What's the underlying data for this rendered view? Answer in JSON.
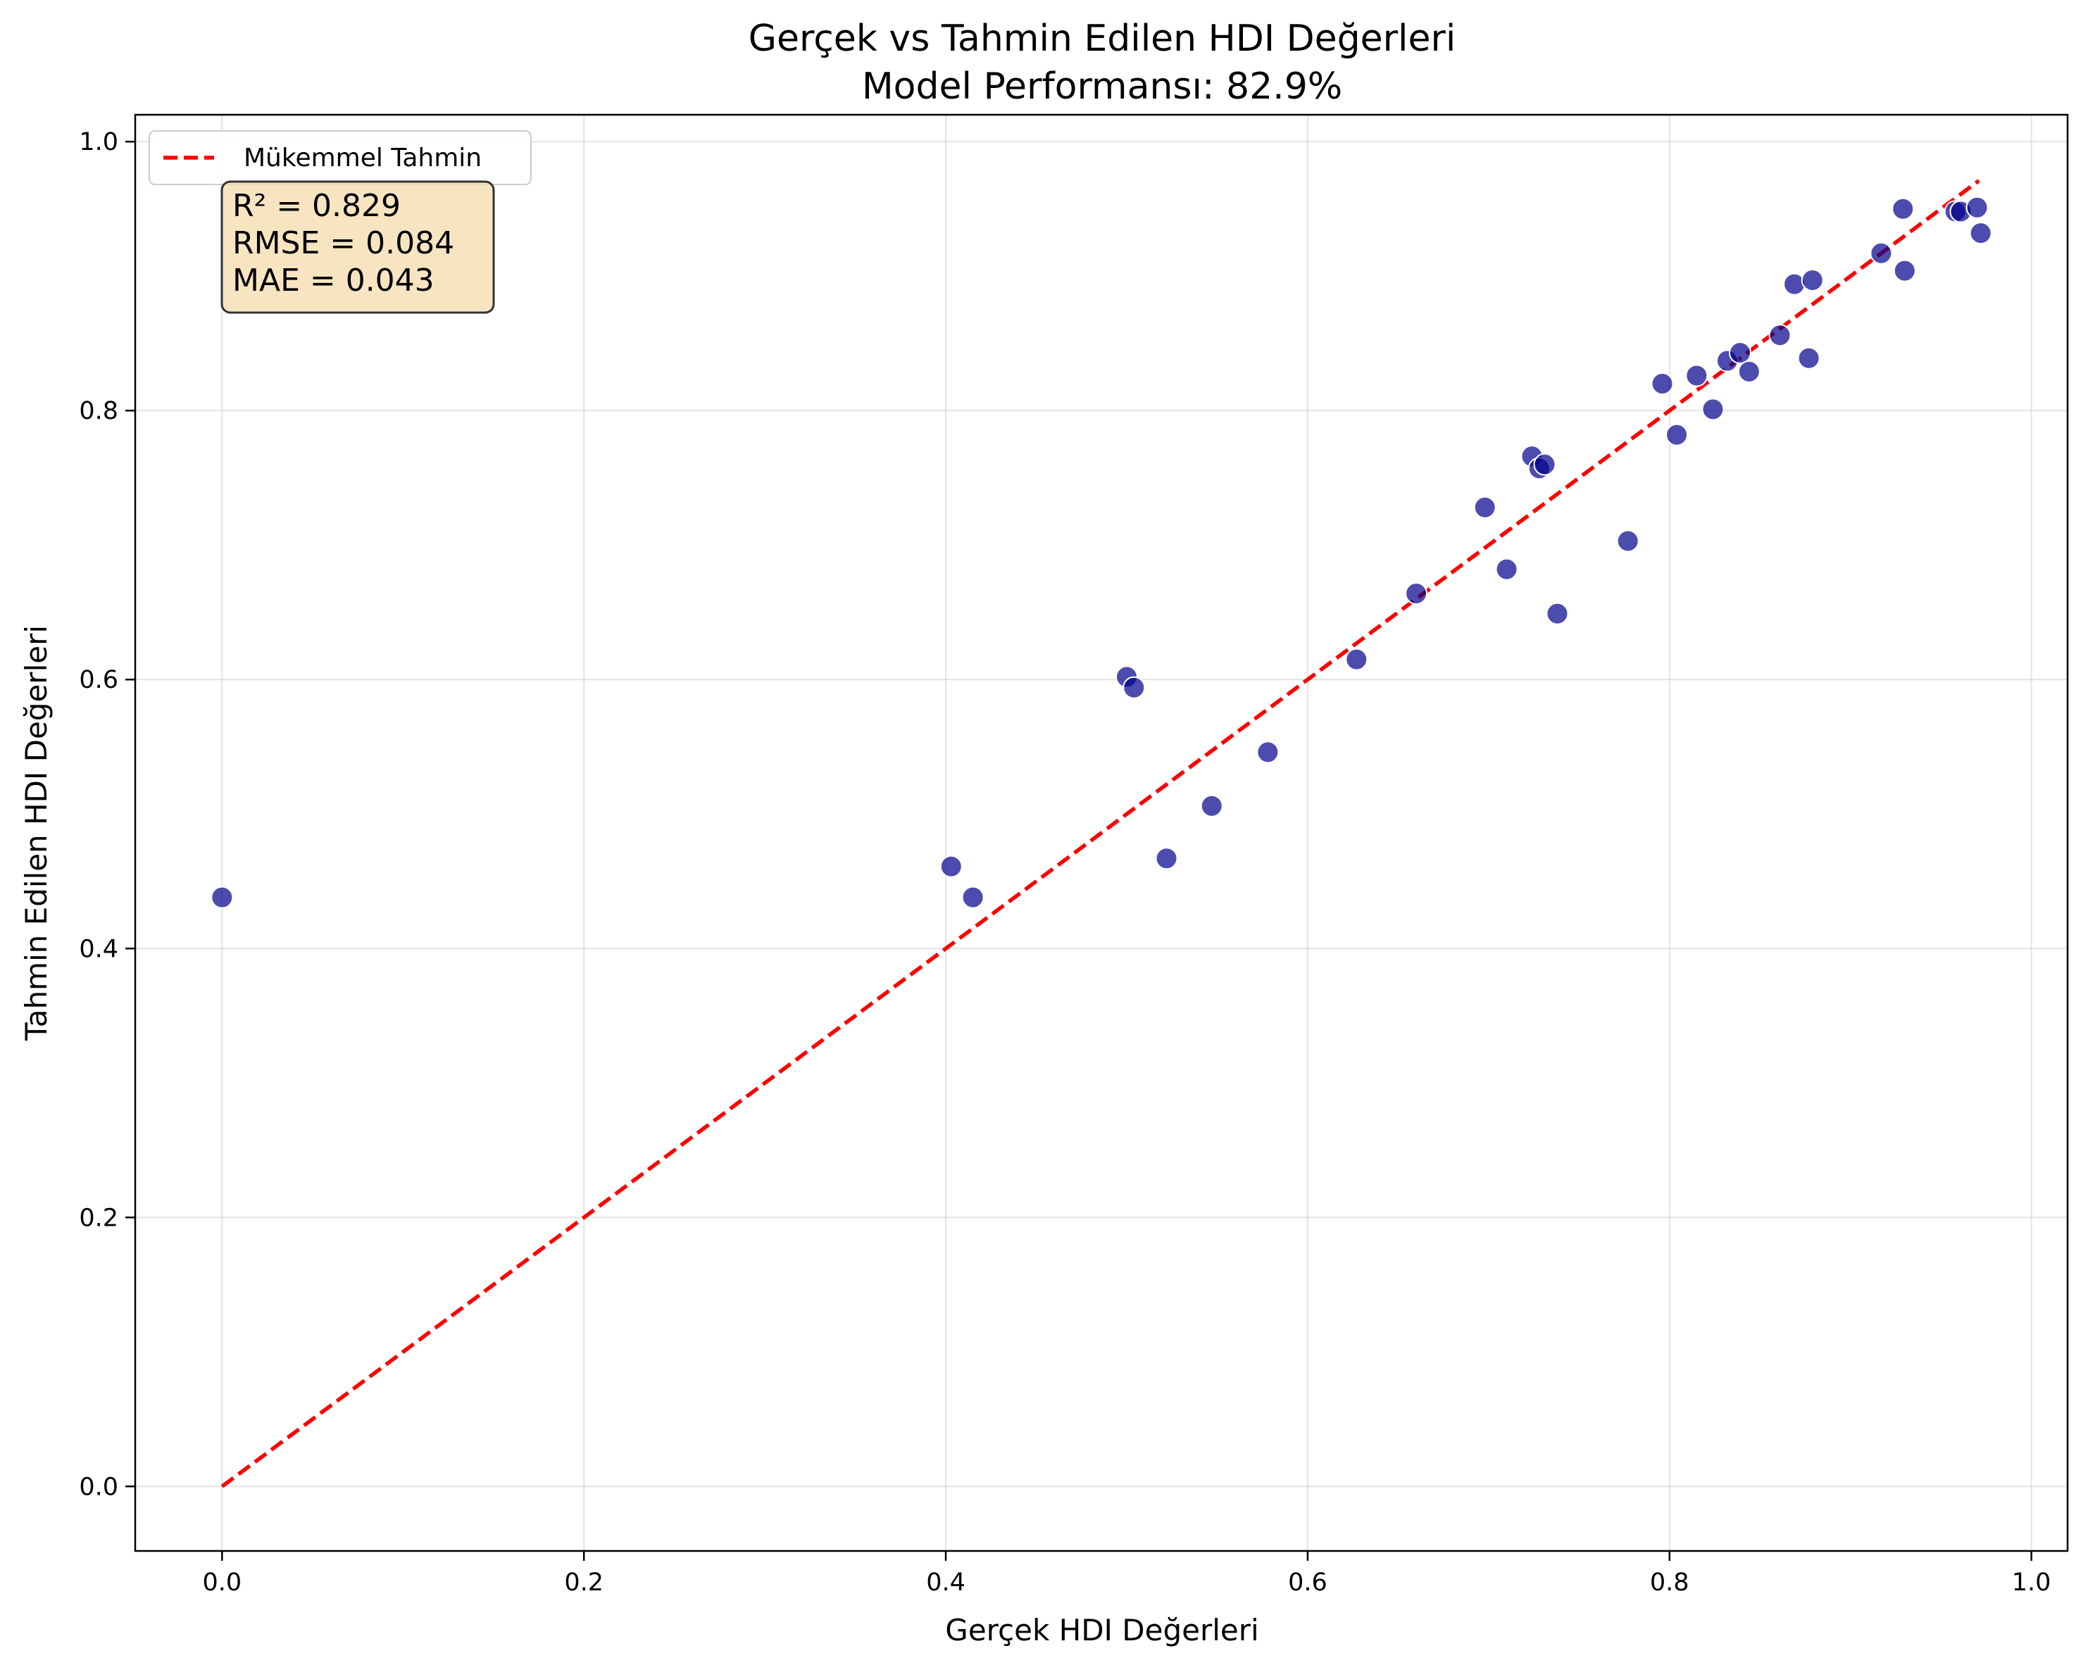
{
  "chart_data": {
    "type": "scatter",
    "title": "Gerçek vs Tahmin Edilen HDI Değerleri",
    "subtitle": "Model Performansı: 82.9%",
    "xlabel": "Gerçek HDI Değerleri",
    "ylabel": "Tahmin Edilen HDI Değerleri",
    "xlim": [
      -0.048,
      1.02
    ],
    "ylim": [
      -0.048,
      1.02
    ],
    "xticks": [
      "0.0",
      "0.2",
      "0.4",
      "0.6",
      "0.8",
      "1.0"
    ],
    "yticks": [
      "0.0",
      "0.2",
      "0.4",
      "0.6",
      "0.8",
      "1.0"
    ],
    "grid": true,
    "legend": {
      "placement": "top-left",
      "entries": [
        {
          "label": "Mükemmel Tahmin",
          "color": "#ff0000",
          "style": "dashed"
        }
      ]
    },
    "stats_box": {
      "lines": [
        "R² = 0.829",
        "RMSE = 0.084",
        "MAE = 0.043"
      ],
      "background": "#f5deb3"
    },
    "reference_line": {
      "name": "Mükemmel Tahmin",
      "x": [
        0.0,
        0.971
      ],
      "y": [
        0.0,
        0.971
      ],
      "color": "#ff0000"
    },
    "series": [
      {
        "marker_color": "#00008b",
        "points": [
          [
            0.0,
            0.438
          ],
          [
            0.403,
            0.461
          ],
          [
            0.415,
            0.438
          ],
          [
            0.5,
            0.602
          ],
          [
            0.504,
            0.594
          ],
          [
            0.522,
            0.467
          ],
          [
            0.547,
            0.506
          ],
          [
            0.578,
            0.546
          ],
          [
            0.627,
            0.615
          ],
          [
            0.66,
            0.664
          ],
          [
            0.698,
            0.728
          ],
          [
            0.71,
            0.682
          ],
          [
            0.724,
            0.766
          ],
          [
            0.728,
            0.757
          ],
          [
            0.731,
            0.76
          ],
          [
            0.738,
            0.649
          ],
          [
            0.777,
            0.703
          ],
          [
            0.796,
            0.82
          ],
          [
            0.804,
            0.782
          ],
          [
            0.815,
            0.826
          ],
          [
            0.824,
            0.801
          ],
          [
            0.832,
            0.837
          ],
          [
            0.839,
            0.843
          ],
          [
            0.844,
            0.829
          ],
          [
            0.861,
            0.856
          ],
          [
            0.869,
            0.894
          ],
          [
            0.877,
            0.839
          ],
          [
            0.879,
            0.897
          ],
          [
            0.917,
            0.917
          ],
          [
            0.929,
            0.95
          ],
          [
            0.93,
            0.904
          ],
          [
            0.958,
            0.948
          ],
          [
            0.961,
            0.948
          ],
          [
            0.97,
            0.951
          ],
          [
            0.972,
            0.932
          ]
        ]
      }
    ]
  }
}
